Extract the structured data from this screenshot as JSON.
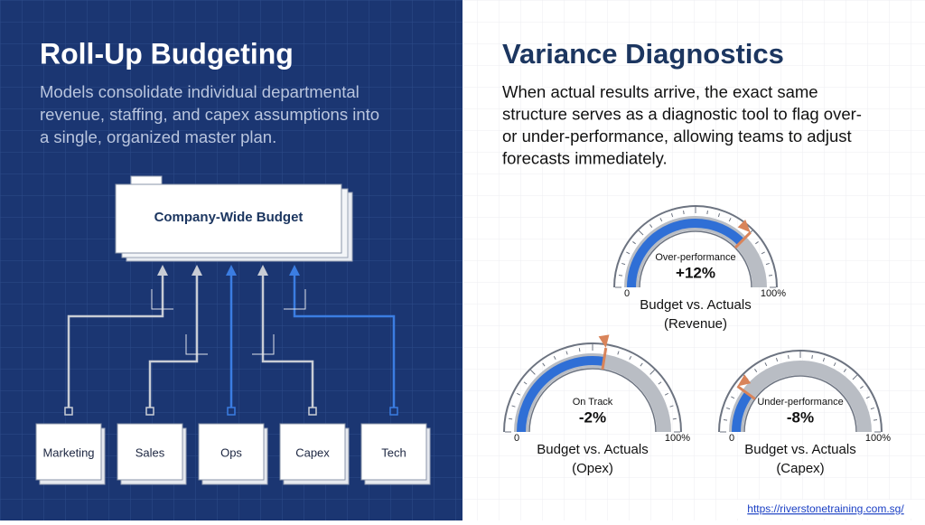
{
  "left": {
    "title": "Roll-Up Budgeting",
    "body": [
      "Models consolidate individual departmental",
      "revenue, staffing, and capex assumptions into",
      "a single, organized master plan."
    ],
    "root": "Company-Wide Budget",
    "departments": [
      "Marketing",
      "Sales",
      "Ops",
      "Capex",
      "Tech"
    ]
  },
  "right": {
    "title": "Variance Diagnostics",
    "body": [
      "When actual results arrive, the exact same",
      "structure serves as a diagnostic tool to flag over-",
      "or under-performance, allowing teams to adjust",
      "forecasts immediately."
    ],
    "gauges": [
      {
        "status": "Over-performance",
        "value": "+12%",
        "min": "0",
        "max": "100%",
        "caption": [
          "Budget vs. Actuals",
          "(Revenue)"
        ]
      },
      {
        "status": "On Track",
        "value": "-2%",
        "min": "0",
        "max": "100%",
        "caption": [
          "Budget vs. Actuals",
          "(Opex)"
        ]
      },
      {
        "status": "Under-performance",
        "value": "-8%",
        "min": "0",
        "max": "100%",
        "caption": [
          "Budget vs. Actuals",
          "(Capex)"
        ]
      }
    ]
  },
  "footer": {
    "url": "https://riverstonetraining.com.sg/"
  }
}
